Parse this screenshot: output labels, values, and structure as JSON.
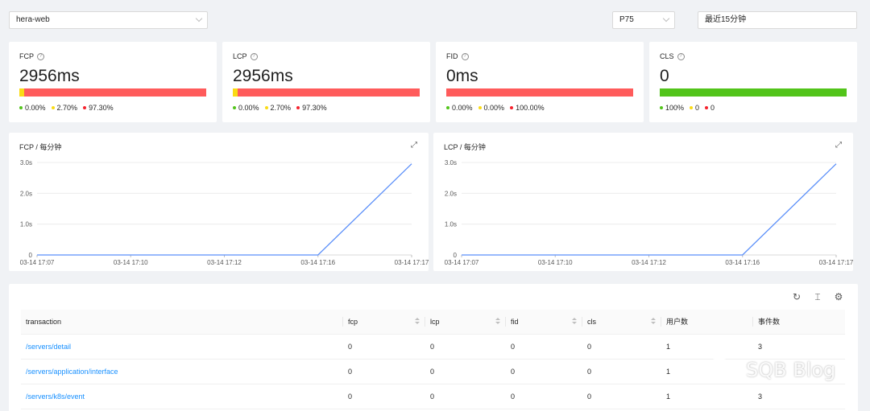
{
  "filters": {
    "app": "hera-web",
    "percentile": "P75",
    "time_range": "最近15分钟"
  },
  "cards": [
    {
      "label": "FCP",
      "value": "2956ms",
      "good_pct": 0.0,
      "mid_pct": 2.7,
      "poor_pct": 97.3,
      "legend": [
        "0.00%",
        "2.70%",
        "97.30%"
      ]
    },
    {
      "label": "LCP",
      "value": "2956ms",
      "good_pct": 0.0,
      "mid_pct": 2.7,
      "poor_pct": 97.3,
      "legend": [
        "0.00%",
        "2.70%",
        "97.30%"
      ]
    },
    {
      "label": "FID",
      "value": "0ms",
      "good_pct": 0.0,
      "mid_pct": 0.0,
      "poor_pct": 100.0,
      "legend": [
        "0.00%",
        "0.00%",
        "100.00%"
      ]
    },
    {
      "label": "CLS",
      "value": "0",
      "good_pct": 100.0,
      "mid_pct": 0.0,
      "poor_pct": 0.0,
      "legend": [
        "100%",
        "0",
        "0"
      ]
    }
  ],
  "colors": {
    "good": "#52c41a",
    "mid": "#fadb14",
    "poor": "#ff5b5b",
    "line": "#5b8ff9",
    "link": "#1890ff"
  },
  "chart_data": [
    {
      "type": "line",
      "title": "FCP / 每分钟",
      "x_labels": [
        "03-14 17:07",
        "03-14 17:10",
        "03-14 17:12",
        "03-14 17:16",
        "03-14 17:17"
      ],
      "y_ticks": [
        "0",
        "1.0s",
        "2.0s",
        "3.0s"
      ],
      "ylim": [
        0,
        3.0
      ],
      "points": [
        [
          0,
          0
        ],
        [
          3,
          0
        ],
        [
          4,
          2.956
        ]
      ]
    },
    {
      "type": "line",
      "title": "LCP / 每分钟",
      "x_labels": [
        "03-14 17:07",
        "03-14 17:10",
        "03-14 17:12",
        "03-14 17:16",
        "03-14 17:17"
      ],
      "y_ticks": [
        "0",
        "1.0s",
        "2.0s",
        "3.0s"
      ],
      "ylim": [
        0,
        3.0
      ],
      "points": [
        [
          0,
          0
        ],
        [
          3,
          0
        ],
        [
          4,
          2.956
        ]
      ]
    }
  ],
  "table": {
    "columns": [
      "transaction",
      "fcp",
      "lcp",
      "fid",
      "cls",
      "用户数",
      "事件数"
    ],
    "rows": [
      [
        "/servers/detail",
        "0",
        "0",
        "0",
        "0",
        "1",
        "3"
      ],
      [
        "/servers/application/interface",
        "0",
        "0",
        "0",
        "0",
        "1",
        ""
      ],
      [
        "/servers/k8s/event",
        "0",
        "0",
        "0",
        "0",
        "1",
        "3"
      ]
    ]
  },
  "tool_icons": [
    "reload-icon",
    "column-height-icon",
    "settings-icon"
  ],
  "watermark": "SQB Blog"
}
